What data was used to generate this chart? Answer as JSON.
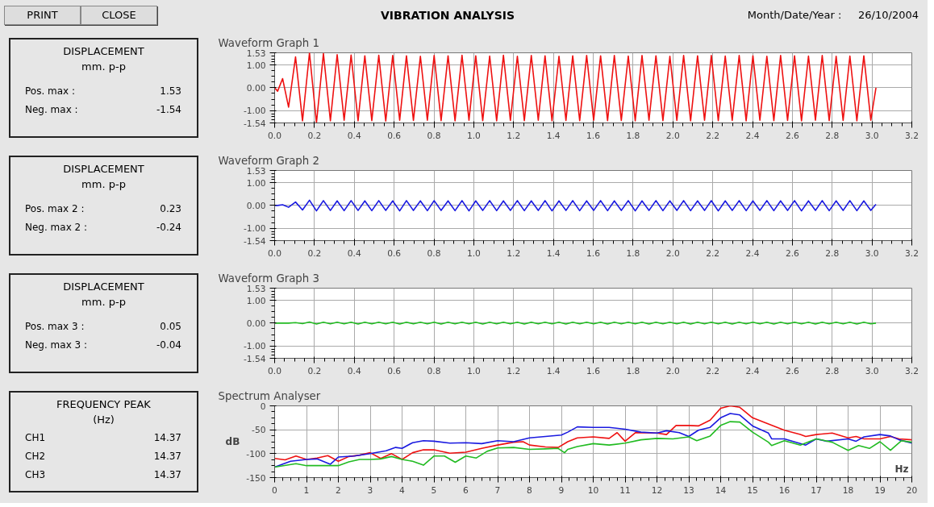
{
  "chart_data": [
    {
      "type": "other",
      "title": "VIBRATION ANALYSIS",
      "annotations": [
        "PRINT",
        "CLOSE",
        "Month/Date/Year :",
        "26/10/2004"
      ]
    },
    {
      "type": "other",
      "title": "DISPLACEMENT",
      "subtitle": "mm. p-p",
      "annotations": [
        "Pos. max :",
        "1.53",
        "Neg. max :",
        "-1.54"
      ]
    },
    {
      "type": "line",
      "title": "Waveform Graph 1",
      "grid": true,
      "x": [
        0,
        0.015,
        0.04,
        0.07,
        0.105,
        0.14,
        0.175,
        0.21,
        0.245,
        0.28,
        0.314,
        0.349,
        0.384,
        0.419,
        0.453,
        0.488,
        0.523,
        0.558,
        0.593,
        0.628,
        0.662,
        0.697,
        0.732,
        0.767,
        0.801,
        0.836,
        0.871,
        0.906,
        0.941,
        0.976,
        1.01,
        1.045,
        1.08,
        1.115,
        1.149,
        1.184,
        1.219,
        1.254,
        1.289,
        1.324,
        1.358,
        1.393,
        1.428,
        1.463,
        1.497,
        1.532,
        1.567,
        1.602,
        1.637,
        1.672,
        1.706,
        1.741,
        1.776,
        1.811,
        1.845,
        1.88,
        1.915,
        1.95,
        1.985,
        2.02,
        2.054,
        2.089,
        2.124,
        2.159,
        2.193,
        2.228,
        2.263,
        2.298,
        2.333,
        2.368,
        2.402,
        2.437,
        2.472,
        2.507,
        2.541,
        2.576,
        2.611,
        2.646,
        2.681,
        2.716,
        2.75,
        2.785,
        2.82,
        2.855,
        2.889,
        2.924,
        2.959,
        2.994,
        3.02
      ],
      "series": [
        {
          "color": "#ee1111",
          "values": [
            0,
            -0.15,
            0.4,
            -0.85,
            1.35,
            -1.45,
            1.53,
            -1.54,
            1.5,
            -1.45,
            1.45,
            -1.42,
            1.43,
            -1.45,
            1.4,
            -1.44,
            1.42,
            -1.46,
            1.41,
            -1.42,
            1.4,
            -1.43,
            1.38,
            -1.42,
            1.41,
            -1.44,
            1.4,
            -1.45,
            1.42,
            -1.42,
            1.4,
            -1.44,
            1.39,
            -1.45,
            1.42,
            -1.43,
            1.38,
            -1.44,
            1.41,
            -1.42,
            1.4,
            -1.45,
            1.38,
            -1.43,
            1.4,
            -1.44,
            1.41,
            -1.42,
            1.4,
            -1.44,
            1.41,
            -1.43,
            1.39,
            -1.45,
            1.41,
            -1.42,
            1.4,
            -1.44,
            1.38,
            -1.43,
            1.41,
            -1.45,
            1.4,
            -1.42,
            1.41,
            -1.44,
            1.39,
            -1.43,
            1.41,
            -1.45,
            1.4,
            -1.42,
            1.38,
            -1.44,
            1.41,
            -1.43,
            1.4,
            -1.45,
            1.39,
            -1.42,
            1.41,
            -1.44,
            1.38,
            -1.43,
            1.39,
            -1.45,
            1.4,
            -1.42,
            0.0
          ]
        }
      ],
      "xlim": [
        0,
        3.2
      ],
      "xticks": [
        {
          "value": 0,
          "label": "0.0"
        },
        0.2,
        0.4,
        0.6,
        0.8,
        {
          "value": 1,
          "label": "1.0"
        },
        1.2,
        1.4,
        1.6,
        1.8,
        {
          "value": 2,
          "label": "2.0"
        },
        2.2,
        2.4,
        2.6,
        2.8,
        {
          "value": 3,
          "label": "3.0"
        },
        3.2
      ],
      "ylim": [
        -1.54,
        1.53
      ],
      "yticks": [
        -1.54,
        {
          "value": -1,
          "label": "-1.00"
        },
        {
          "value": 0,
          "label": "0.00"
        },
        {
          "value": 1,
          "label": "1.00"
        },
        1.53
      ]
    },
    {
      "type": "other",
      "title": "DISPLACEMENT",
      "subtitle": "mm. p-p",
      "annotations": [
        "Pos. max 2 :",
        "0.23",
        "Neg. max 2 :",
        "-0.24"
      ]
    },
    {
      "type": "line",
      "title": "Waveform Graph 2",
      "grid": true,
      "x": [
        0,
        0.015,
        0.04,
        0.07,
        0.105,
        0.14,
        0.175,
        0.21,
        0.245,
        0.28,
        0.314,
        0.349,
        0.384,
        0.419,
        0.453,
        0.488,
        0.523,
        0.558,
        0.593,
        0.628,
        0.662,
        0.697,
        0.732,
        0.767,
        0.801,
        0.836,
        0.871,
        0.906,
        0.941,
        0.976,
        1.01,
        1.045,
        1.08,
        1.115,
        1.149,
        1.184,
        1.219,
        1.254,
        1.289,
        1.324,
        1.358,
        1.393,
        1.428,
        1.463,
        1.497,
        1.532,
        1.567,
        1.602,
        1.637,
        1.672,
        1.706,
        1.741,
        1.776,
        1.811,
        1.845,
        1.88,
        1.915,
        1.95,
        1.985,
        2.02,
        2.054,
        2.089,
        2.124,
        2.159,
        2.193,
        2.228,
        2.263,
        2.298,
        2.333,
        2.368,
        2.402,
        2.437,
        2.472,
        2.507,
        2.541,
        2.576,
        2.611,
        2.646,
        2.681,
        2.716,
        2.75,
        2.785,
        2.82,
        2.855,
        2.889,
        2.924,
        2.959,
        2.994,
        3.02
      ],
      "series": [
        {
          "color": "#1a1ae0",
          "values": [
            0,
            0,
            0.03,
            -0.08,
            0.15,
            -0.2,
            0.23,
            -0.24,
            0.21,
            -0.22,
            0.2,
            -0.23,
            0.21,
            -0.22,
            0.2,
            -0.23,
            0.21,
            -0.22,
            0.2,
            -0.24,
            0.21,
            -0.22,
            0.2,
            -0.23,
            0.21,
            -0.22,
            0.2,
            -0.23,
            0.21,
            -0.24,
            0.2,
            -0.22,
            0.21,
            -0.23,
            0.2,
            -0.22,
            0.21,
            -0.23,
            0.2,
            -0.22,
            0.21,
            -0.24,
            0.2,
            -0.22,
            0.21,
            -0.23,
            0.2,
            -0.22,
            0.21,
            -0.23,
            0.2,
            -0.22,
            0.21,
            -0.24,
            0.2,
            -0.22,
            0.21,
            -0.23,
            0.2,
            -0.22,
            0.21,
            -0.23,
            0.2,
            -0.22,
            0.21,
            -0.24,
            0.2,
            -0.22,
            0.21,
            -0.23,
            0.2,
            -0.22,
            0.21,
            -0.23,
            0.2,
            -0.22,
            0.21,
            -0.24,
            0.2,
            -0.22,
            0.21,
            -0.23,
            0.2,
            -0.22,
            0.21,
            -0.23,
            0.2,
            -0.22,
            0.05
          ]
        }
      ],
      "xlim": [
        0,
        3.2
      ],
      "xticks": [
        {
          "value": 0,
          "label": "0.0"
        },
        0.2,
        0.4,
        0.6,
        0.8,
        {
          "value": 1,
          "label": "1.0"
        },
        1.2,
        1.4,
        1.6,
        1.8,
        {
          "value": 2,
          "label": "2.0"
        },
        2.2,
        2.4,
        2.6,
        2.8,
        {
          "value": 3,
          "label": "3.0"
        },
        3.2
      ],
      "ylim": [
        -1.54,
        1.53
      ],
      "yticks": [
        -1.54,
        {
          "value": -1,
          "label": "-1.00"
        },
        {
          "value": 0,
          "label": "0.00"
        },
        {
          "value": 1,
          "label": "1.00"
        },
        1.53
      ]
    },
    {
      "type": "other",
      "title": "DISPLACEMENT",
      "subtitle": "mm. p-p",
      "annotations": [
        "Pos. max 3 :",
        "0.05",
        "Neg. max 3 :",
        "-0.04"
      ]
    },
    {
      "type": "line",
      "title": "Waveform Graph 3",
      "grid": true,
      "x": [
        0,
        0.015,
        0.04,
        0.07,
        0.105,
        0.14,
        0.175,
        0.21,
        0.245,
        0.28,
        0.314,
        0.349,
        0.384,
        0.419,
        0.453,
        0.488,
        0.523,
        0.558,
        0.593,
        0.628,
        0.662,
        0.697,
        0.732,
        0.767,
        0.801,
        0.836,
        0.871,
        0.906,
        0.941,
        0.976,
        1.01,
        1.045,
        1.08,
        1.115,
        1.149,
        1.184,
        1.219,
        1.254,
        1.289,
        1.324,
        1.358,
        1.393,
        1.428,
        1.463,
        1.497,
        1.532,
        1.567,
        1.602,
        1.637,
        1.672,
        1.706,
        1.741,
        1.776,
        1.811,
        1.845,
        1.88,
        1.915,
        1.95,
        1.985,
        2.02,
        2.054,
        2.089,
        2.124,
        2.159,
        2.193,
        2.228,
        2.263,
        2.298,
        2.333,
        2.368,
        2.402,
        2.437,
        2.472,
        2.507,
        2.541,
        2.576,
        2.611,
        2.646,
        2.681,
        2.716,
        2.75,
        2.785,
        2.82,
        2.855,
        2.889,
        2.924,
        2.959,
        2.994,
        3.02
      ],
      "series": [
        {
          "color": "#22bb22",
          "values": [
            0,
            0,
            0,
            0,
            0.02,
            -0.02,
            0.05,
            -0.04,
            0.04,
            -0.03,
            0.04,
            -0.03,
            0.04,
            -0.04,
            0.04,
            -0.03,
            0.04,
            -0.03,
            0.04,
            -0.04,
            0.04,
            -0.03,
            0.04,
            -0.03,
            0.04,
            -0.04,
            0.04,
            -0.03,
            0.04,
            -0.03,
            0.04,
            -0.04,
            0.04,
            -0.03,
            0.04,
            -0.03,
            0.04,
            -0.04,
            0.04,
            -0.03,
            0.04,
            -0.03,
            0.04,
            -0.04,
            0.04,
            -0.03,
            0.04,
            -0.03,
            0.04,
            -0.04,
            0.04,
            -0.03,
            0.04,
            -0.03,
            0.04,
            -0.04,
            0.04,
            -0.03,
            0.04,
            -0.03,
            0.04,
            -0.04,
            0.04,
            -0.03,
            0.04,
            -0.03,
            0.04,
            -0.04,
            0.04,
            -0.03,
            0.04,
            -0.03,
            0.04,
            -0.04,
            0.04,
            -0.03,
            0.04,
            -0.03,
            0.04,
            -0.04,
            0.04,
            -0.03,
            0.04,
            -0.03,
            0.04,
            -0.04,
            0.04,
            -0.03,
            0
          ]
        }
      ],
      "xlim": [
        0,
        3.2
      ],
      "xticks": [
        {
          "value": 0,
          "label": "0.0"
        },
        0.2,
        0.4,
        0.6,
        0.8,
        {
          "value": 1,
          "label": "1.0"
        },
        1.2,
        1.4,
        1.6,
        1.8,
        {
          "value": 2,
          "label": "2.0"
        },
        2.2,
        2.4,
        2.6,
        2.8,
        {
          "value": 3,
          "label": "3.0"
        },
        3.2
      ],
      "ylim": [
        -1.54,
        1.53
      ],
      "yticks": [
        -1.54,
        {
          "value": -1,
          "label": "-1.00"
        },
        {
          "value": 0,
          "label": "0.00"
        },
        {
          "value": 1,
          "label": "1.00"
        },
        1.53
      ]
    },
    {
      "type": "other",
      "title": "FREQUENCY PEAK",
      "subtitle": "(Hz)",
      "annotations": [
        "CH1",
        "14.37",
        "CH2",
        "14.37",
        "CH3",
        "14.37"
      ]
    },
    {
      "type": "line",
      "title": "Spectrum Analyser",
      "xlabel": "Hz",
      "ylabel": "dB",
      "grid": true,
      "series": [
        {
          "color": "#ee1111",
          "x": [
            0,
            0.33,
            0.67,
            1,
            1.33,
            1.67,
            2,
            2.33,
            2.67,
            3,
            3.33,
            3.67,
            4,
            4.33,
            4.67,
            5,
            5.5,
            6,
            6.5,
            7,
            7.5,
            7.8,
            8,
            8.5,
            8.9,
            9.2,
            9.5,
            10,
            10.5,
            10.75,
            11,
            11.33,
            12,
            12.3,
            12.6,
            13,
            13.3,
            13.67,
            14,
            14.3,
            14.6,
            15,
            15.5,
            16,
            16.5,
            16.67,
            17,
            17.5,
            18,
            18.25,
            18.5,
            19,
            19.33,
            19.6,
            20
          ],
          "values": [
            -110,
            -113,
            -105,
            -112,
            -109,
            -104,
            -116,
            -106,
            -103,
            -98,
            -110,
            -100,
            -112,
            -98,
            -92,
            -92,
            -99,
            -97,
            -89,
            -82,
            -76,
            -75,
            -82,
            -86,
            -87,
            -75,
            -67,
            -65,
            -68,
            -56,
            -74,
            -56,
            -57,
            -60,
            -41,
            -41,
            -42,
            -30,
            -5,
            0,
            -3,
            -25,
            -38,
            -51,
            -60,
            -64,
            -60,
            -57,
            -67,
            -64,
            -69,
            -69,
            -64,
            -69,
            -71
          ]
        },
        {
          "color": "#1a1ae0",
          "x": [
            0,
            0.5,
            1,
            1.33,
            1.75,
            2,
            2.5,
            3,
            3.5,
            3.8,
            4,
            4.33,
            4.67,
            5,
            5.5,
            6,
            6.5,
            7,
            7.5,
            8,
            8.5,
            9,
            9.2,
            9.5,
            10,
            10.5,
            11,
            11.5,
            12,
            12.3,
            12.7,
            13,
            13.3,
            13.67,
            14,
            14.3,
            14.6,
            15,
            15.5,
            15.6,
            16,
            16.67,
            17,
            17.33,
            18,
            18.25,
            18.5,
            19,
            19.33,
            19.6,
            20
          ],
          "values": [
            -128,
            -116,
            -112,
            -111,
            -122,
            -107,
            -105,
            -100,
            -94,
            -87,
            -89,
            -77,
            -73,
            -74,
            -78,
            -77,
            -79,
            -73,
            -75,
            -67,
            -64,
            -61,
            -55,
            -44,
            -45,
            -45,
            -49,
            -55,
            -57,
            -52,
            -56,
            -64,
            -51,
            -45,
            -25,
            -16,
            -19,
            -42,
            -57,
            -69,
            -69,
            -82,
            -69,
            -74,
            -69,
            -74,
            -65,
            -60,
            -63,
            -71,
            -78
          ]
        },
        {
          "color": "#22bb22",
          "x": [
            0,
            0.67,
            1,
            1.5,
            2,
            2.33,
            2.67,
            3,
            3.33,
            3.67,
            4,
            4.33,
            4.67,
            5,
            5.33,
            5.67,
            6,
            6.33,
            6.67,
            7,
            7.5,
            8,
            8.5,
            8.9,
            9.1,
            9.2,
            9.5,
            10,
            10.5,
            11,
            11.5,
            12,
            12.5,
            13,
            13.25,
            13.67,
            14,
            14.3,
            14.6,
            15,
            15.5,
            15.6,
            16,
            16.5,
            17,
            17.5,
            18,
            18.33,
            18.67,
            19,
            19.33,
            19.67,
            20
          ],
          "values": [
            -128,
            -121,
            -125,
            -125,
            -125,
            -117,
            -112,
            -112,
            -111,
            -106,
            -112,
            -116,
            -124,
            -105,
            -105,
            -118,
            -105,
            -109,
            -95,
            -88,
            -87,
            -91,
            -90,
            -89,
            -98,
            -91,
            -85,
            -79,
            -82,
            -78,
            -71,
            -68,
            -69,
            -65,
            -73,
            -63,
            -41,
            -33,
            -34,
            -55,
            -76,
            -83,
            -73,
            -82,
            -69,
            -76,
            -93,
            -83,
            -89,
            -75,
            -93,
            -73,
            -76
          ]
        }
      ],
      "xlim": [
        0,
        20
      ],
      "xticks": [
        0,
        1,
        2,
        3,
        4,
        5,
        6,
        7,
        8,
        9,
        10,
        11,
        12,
        13,
        14,
        15,
        16,
        17,
        18,
        19,
        20
      ],
      "ylim": [
        -150,
        0
      ],
      "yticks": [
        -150,
        -100,
        -50,
        0
      ]
    }
  ]
}
